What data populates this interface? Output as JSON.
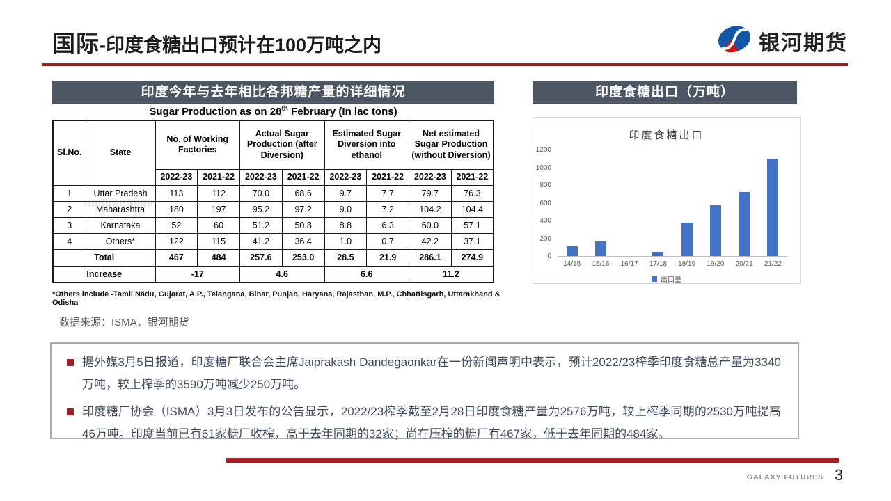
{
  "header": {
    "title_main": "国际",
    "title_rest": "-印度食糖出口预计在100万吨之内",
    "logo_text": "银河期货"
  },
  "left_panel": {
    "band_title": "印度今年与去年相比各邦糖产量的详细情况",
    "subtitle_pre": "Sugar Production as on 28",
    "subtitle_sup": "th",
    "subtitle_post": " February (In lac tons)",
    "table": {
      "col_headers": {
        "slno": "Sl.No.",
        "state": "State",
        "groups": [
          "No. of Working Factories",
          "Actual Sugar Production (after Diversion)",
          "Estimated Sugar Diversion into ethanol",
          "Net estimated Sugar Production (without Diversion)"
        ],
        "years": [
          "2022-23",
          "2021-22"
        ]
      },
      "rows": [
        {
          "sl": "1",
          "state": "Uttar Pradesh",
          "values": [
            "113",
            "112",
            "70.0",
            "68.6",
            "9.7",
            "7.7",
            "79.7",
            "76.3"
          ]
        },
        {
          "sl": "2",
          "state": "Maharashtra",
          "values": [
            "180",
            "197",
            "95.2",
            "97.2",
            "9.0",
            "7.2",
            "104.2",
            "104.4"
          ]
        },
        {
          "sl": "3",
          "state": "Karnataka",
          "values": [
            "52",
            "60",
            "51.2",
            "50.8",
            "8.8",
            "6.3",
            "60.0",
            "57.1"
          ]
        },
        {
          "sl": "4",
          "state": "Others*",
          "values": [
            "122",
            "115",
            "41.2",
            "36.4",
            "1.0",
            "0.7",
            "42.2",
            "37.1"
          ]
        }
      ],
      "total": {
        "label": "Total",
        "values": [
          "467",
          "484",
          "257.6",
          "253.0",
          "28.5",
          "21.9",
          "286.1",
          "274.9"
        ]
      },
      "increase": {
        "label": "Increase",
        "values": [
          "-17",
          "4.6",
          "6.6",
          "11.2"
        ]
      }
    },
    "footnote": "*Others include -Tamil Nādu, Gujarat, A.P., Telangana, Bihar, Punjab, Haryana, Rajasthan, M.P., Chhattisgarh, Uttarakhand & Odisha",
    "source": "数据来源：ISMA，银河期货"
  },
  "right_panel": {
    "band_title": "印度食糖出口（万吨）"
  },
  "chart_data": {
    "type": "bar",
    "title": "印度食糖出口",
    "categories": [
      "14/15",
      "15/16",
      "16/17",
      "17/18",
      "18/19",
      "19/20",
      "20/21",
      "21/22"
    ],
    "values": [
      110,
      165,
      0,
      45,
      375,
      575,
      720,
      1100
    ],
    "series_name": "出口量",
    "legend": [
      "出口量"
    ],
    "xlabel": "",
    "ylabel": "",
    "ylim": [
      0,
      1200
    ],
    "yticks": [
      0,
      200,
      400,
      600,
      800,
      1000,
      1200
    ],
    "grid": false,
    "legend_position": "bottom",
    "bar_color": "#4472c4"
  },
  "notes": {
    "bullets": [
      "据外媒3月5日报道，印度糖厂联合会主席Jaiprakash Dandegaonkar在一份新闻声明中表示，预计2022/23榨季印度食糖总产量为3340万吨，较上榨季的3590万吨减少250万吨。",
      "印度糖厂协会（ISMA）3月3日发布的公告显示，2022/23榨季截至2月28日印度食糖产量为2576万吨，较上榨季同期的2530万吨提高46万吨。印度当前已有61家糖厂收榨，高于去年同期的32家；尚在压榨的糖厂有467家，低于去年同期的484家。"
    ]
  },
  "footer": {
    "brand": "GALAXY FUTURES",
    "page": "3"
  },
  "colors": {
    "accent_red": "#9e1f24",
    "band_gray": "#4d5764",
    "chart_blue": "#4472c4",
    "text_dark": "#3f4a5e"
  }
}
